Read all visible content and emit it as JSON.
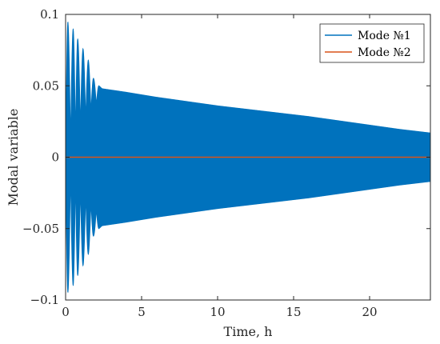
{
  "chart_data": {
    "type": "line",
    "xlabel": "Time, h",
    "ylabel": "Modal variable",
    "xlim": [
      0,
      24
    ],
    "ylim": [
      -0.1,
      0.1
    ],
    "xticks": [
      0,
      5,
      10,
      15,
      20
    ],
    "xtick_labels": [
      "0",
      "5",
      "10",
      "15",
      "20"
    ],
    "yticks": [
      -0.1,
      -0.05,
      0,
      0.05,
      0.1
    ],
    "ytick_labels": [
      "−0.1",
      "−0.05",
      "0",
      "0.05",
      "0.1"
    ],
    "grid": false,
    "legend_position": "top-right",
    "series": [
      {
        "name": "Mode №1",
        "color": "#0072BD",
        "style": "dense oscillation (filled envelope)",
        "beat_peaks": {
          "x": [
            0.15,
            0.5,
            0.8,
            1.15,
            1.5,
            1.85,
            2.2
          ],
          "amplitude": [
            0.095,
            0.09,
            0.083,
            0.076,
            0.068,
            0.055,
            0.05
          ]
        },
        "envelope": {
          "x": [
            2.4,
            4,
            6,
            8,
            10,
            12,
            14,
            16,
            18,
            20,
            22,
            24
          ],
          "amplitude": [
            0.048,
            0.0455,
            0.042,
            0.039,
            0.036,
            0.0335,
            0.031,
            0.0285,
            0.0255,
            0.0225,
            0.0195,
            0.017
          ]
        }
      },
      {
        "name": "Mode №2",
        "color": "#D95319",
        "style": "line",
        "x": [
          0,
          24
        ],
        "values": [
          0,
          0
        ]
      }
    ]
  }
}
